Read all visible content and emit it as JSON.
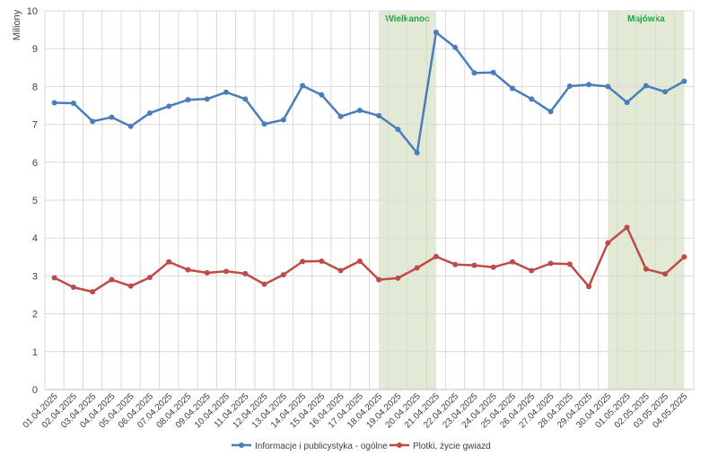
{
  "chart_data": {
    "type": "line",
    "ylabel": "Miliony",
    "ylim": [
      0,
      10
    ],
    "yticks": [
      0,
      1,
      2,
      3,
      4,
      5,
      6,
      7,
      8,
      9,
      10
    ],
    "grid": true,
    "legend_position": "bottom",
    "categories": [
      "01.04.2025",
      "02.04.2025",
      "03.04.2025",
      "04.04.2025",
      "05.04.2025",
      "06.04.2025",
      "07.04.2025",
      "08.04.2025",
      "09.04.2025",
      "10.04.2025",
      "11.04.2025",
      "12.04.2025",
      "13.04.2025",
      "14.04.2025",
      "15.04.2025",
      "16.04.2025",
      "17.04.2025",
      "18.04.2025",
      "19.04.2025",
      "20.04.2025",
      "21.04.2025",
      "22.04.2025",
      "23.04.2025",
      "24.04.2025",
      "25.04.2025",
      "26.04.2025",
      "27.04.2025",
      "28.04.2025",
      "29.04.2025",
      "30.04.2025",
      "01.05.2025",
      "02.05.2025",
      "03.05.2025",
      "04.05.2025"
    ],
    "series": [
      {
        "name": "Informacje i publicystyka - ogólne",
        "color": "#4a7ebb",
        "values": [
          7.57,
          7.56,
          7.08,
          7.19,
          6.95,
          7.3,
          7.48,
          7.65,
          7.67,
          7.85,
          7.67,
          7.01,
          7.12,
          8.02,
          7.78,
          7.21,
          7.37,
          7.23,
          6.87,
          6.25,
          9.43,
          9.03,
          8.36,
          8.37,
          7.95,
          7.67,
          7.34,
          8.01,
          8.05,
          8.0,
          7.58,
          8.02,
          7.86,
          8.14
        ]
      },
      {
        "name": "Plotki, życie gwiazd",
        "color": "#be4b48",
        "values": [
          2.95,
          2.7,
          2.58,
          2.9,
          2.73,
          2.96,
          3.37,
          3.16,
          3.08,
          3.12,
          3.06,
          2.78,
          3.03,
          3.38,
          3.39,
          3.14,
          3.39,
          2.9,
          2.94,
          3.21,
          3.51,
          3.3,
          3.28,
          3.23,
          3.37,
          3.14,
          3.33,
          3.31,
          2.72,
          3.87,
          4.28,
          3.18,
          3.05,
          3.5
        ]
      }
    ],
    "highlights": [
      {
        "label": "Wielkanoc",
        "from": "18.04.2025",
        "to": "21.04.2025",
        "fill": "#e2ead6",
        "label_color": "#22a348"
      },
      {
        "label": "Majówka",
        "from": "30.04.2025",
        "to": "04.05.2025",
        "fill": "#e2ead6",
        "label_color": "#22a348"
      }
    ]
  }
}
